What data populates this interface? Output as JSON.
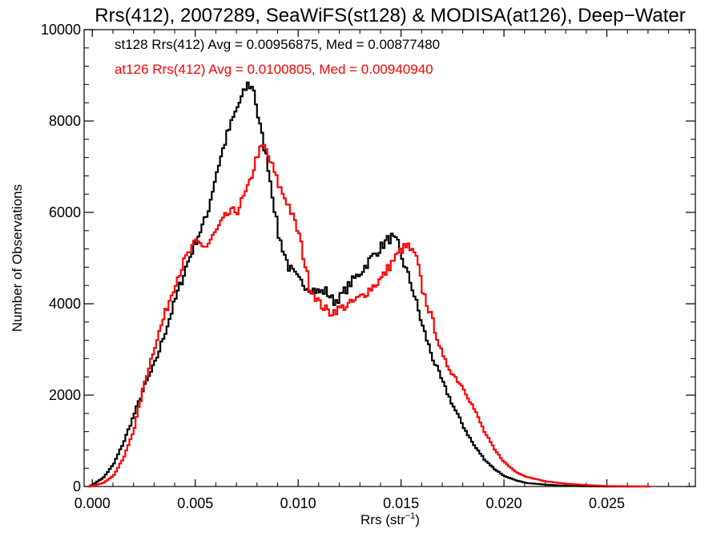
{
  "chart_data": {
    "type": "line",
    "title": "Rrs(412), 2007289, SeaWiFS(st128) & MODISA(at126), Deep−Water",
    "xlabel_main": "Rrs (str",
    "xlabel_sup": "−1",
    "xlabel_end": ")",
    "ylabel": "Number of Observations",
    "xlim": [
      -0.0004,
      0.0293
    ],
    "ylim": [
      0,
      10000
    ],
    "x_ticks": [
      0.0,
      0.005,
      0.01,
      0.015,
      0.02,
      0.025
    ],
    "x_tick_labels": [
      "0.000",
      "0.005",
      "0.010",
      "0.015",
      "0.020",
      "0.025"
    ],
    "y_ticks": [
      0,
      2000,
      4000,
      6000,
      8000,
      10000
    ],
    "y_tick_labels": [
      "0",
      "2000",
      "4000",
      "6000",
      "8000",
      "10000"
    ],
    "annotations": [
      {
        "text": "st128 Rrs(412) Avg = 0.00956875, Med = 0.00877480",
        "color": "#000000"
      },
      {
        "text": "at126 Rrs(412) Avg = 0.0100805, Med = 0.00940940",
        "color": "#ff0000"
      }
    ],
    "series": [
      {
        "color": "#000000",
        "x": [
          -0.0002,
          0.0,
          0.0005,
          0.001,
          0.0015,
          0.002,
          0.0025,
          0.003,
          0.0035,
          0.004,
          0.0045,
          0.005,
          0.0055,
          0.006,
          0.0065,
          0.007,
          0.0073,
          0.0075,
          0.0078,
          0.008,
          0.0085,
          0.009,
          0.0095,
          0.01,
          0.0105,
          0.011,
          0.0113,
          0.0117,
          0.012,
          0.0125,
          0.013,
          0.0135,
          0.014,
          0.0143,
          0.0145,
          0.0148,
          0.015,
          0.0155,
          0.016,
          0.0165,
          0.017,
          0.0175,
          0.018,
          0.0185,
          0.019,
          0.0195,
          0.02,
          0.0205,
          0.021,
          0.022,
          0.023,
          0.024,
          0.025,
          0.026,
          0.027
        ],
        "values": [
          0,
          50,
          200,
          500,
          1000,
          1600,
          2200,
          2700,
          3400,
          4100,
          4800,
          5400,
          5900,
          6900,
          7700,
          8300,
          8600,
          8800,
          8700,
          8100,
          7000,
          5500,
          4800,
          4500,
          4350,
          4250,
          4280,
          4050,
          4150,
          4450,
          4700,
          5000,
          5250,
          5400,
          5450,
          5300,
          5000,
          4350,
          3500,
          2800,
          2250,
          1750,
          1300,
          900,
          600,
          380,
          220,
          140,
          80,
          40,
          15,
          5,
          0,
          0,
          0
        ]
      },
      {
        "color": "#ff0000",
        "x": [
          -0.0002,
          0.0,
          0.0005,
          0.001,
          0.0015,
          0.002,
          0.0025,
          0.003,
          0.0035,
          0.004,
          0.0045,
          0.005,
          0.0055,
          0.006,
          0.0065,
          0.007,
          0.0075,
          0.008,
          0.0083,
          0.0087,
          0.009,
          0.0095,
          0.01,
          0.0105,
          0.011,
          0.0115,
          0.012,
          0.0125,
          0.013,
          0.0135,
          0.014,
          0.0145,
          0.015,
          0.0153,
          0.0157,
          0.016,
          0.0165,
          0.017,
          0.0175,
          0.018,
          0.0185,
          0.019,
          0.0195,
          0.02,
          0.0205,
          0.021,
          0.022,
          0.023,
          0.024,
          0.025,
          0.026,
          0.027
        ],
        "values": [
          0,
          20,
          80,
          250,
          650,
          1300,
          2300,
          3100,
          3800,
          4500,
          5000,
          5350,
          5250,
          5600,
          5950,
          6050,
          6500,
          7300,
          7450,
          7000,
          6600,
          6150,
          5500,
          4400,
          4000,
          3800,
          3900,
          4000,
          4150,
          4350,
          4550,
          4900,
          5200,
          5250,
          5000,
          4300,
          3600,
          2800,
          2450,
          2150,
          1700,
          1200,
          800,
          520,
          330,
          220,
          110,
          60,
          30,
          10,
          5,
          0
        ]
      }
    ]
  }
}
